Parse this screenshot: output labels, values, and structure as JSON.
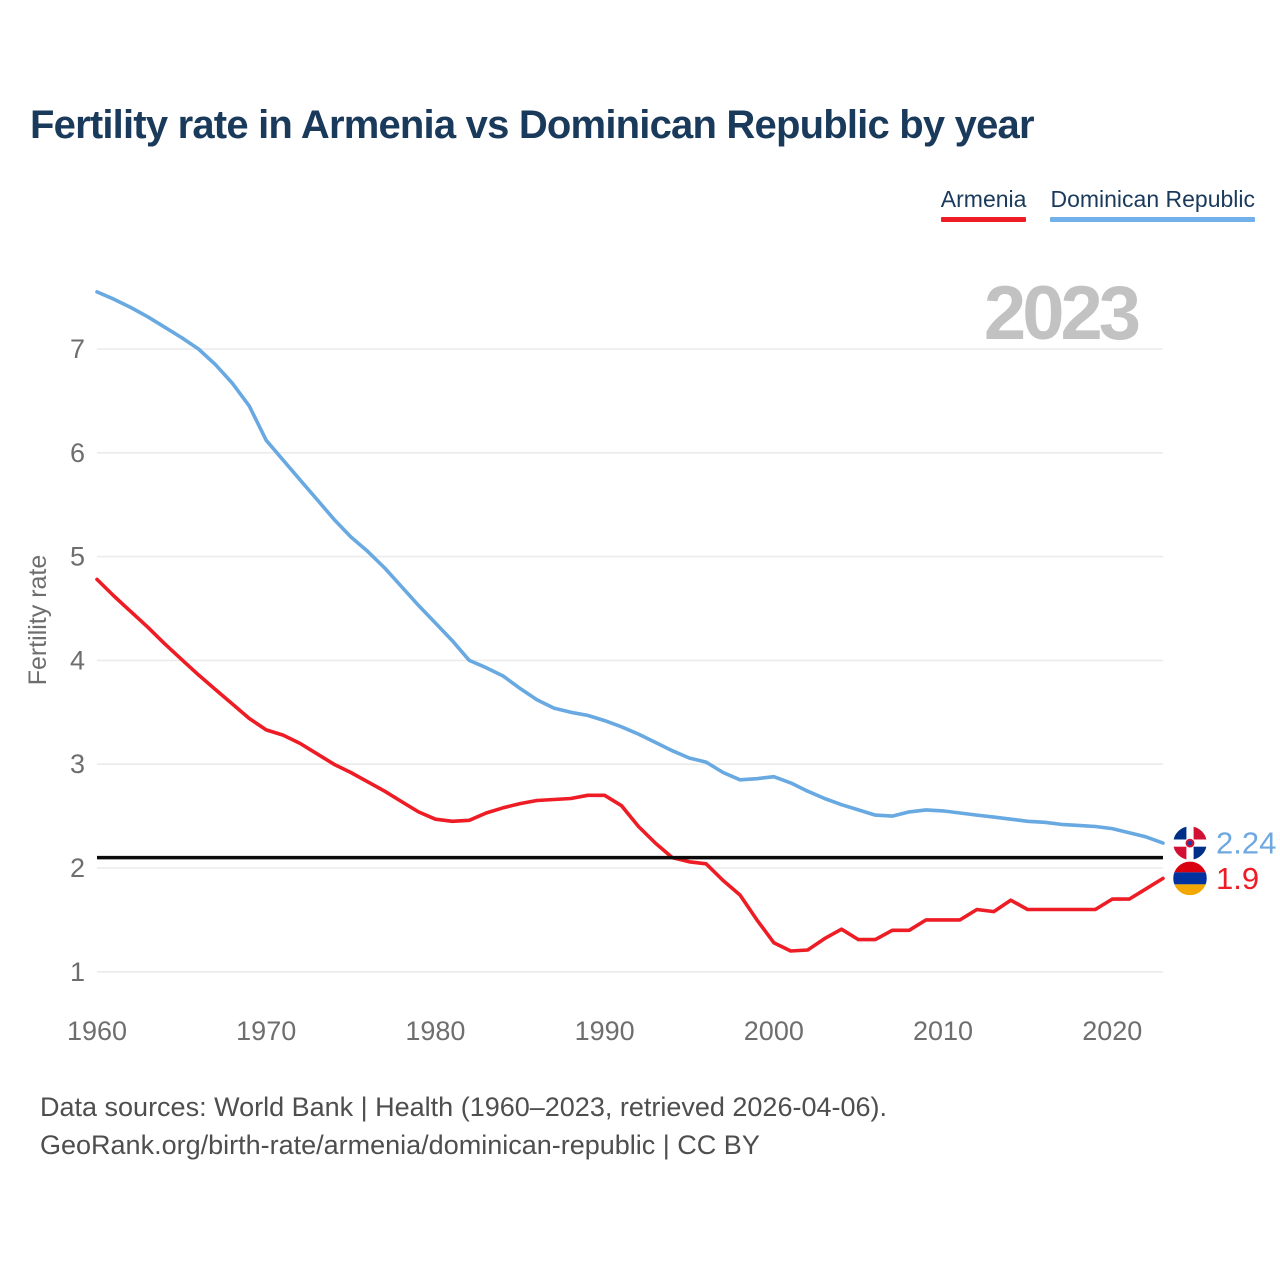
{
  "title": "Fertility rate in Armenia vs Dominican Republic by year",
  "watermark": "2023",
  "legend": [
    {
      "label": "Armenia",
      "color": "#ee1c25"
    },
    {
      "label": "Dominican Republic",
      "color": "#71b0e8"
    }
  ],
  "y_axis": {
    "label": "Fertility rate",
    "ticks": [
      1,
      2,
      3,
      4,
      5,
      6,
      7
    ]
  },
  "x_axis": {
    "ticks": [
      1960,
      1970,
      1980,
      1990,
      2000,
      2010,
      2020
    ]
  },
  "reference_line": {
    "value": 2.1,
    "color": "#0b0b0b"
  },
  "end_labels": [
    {
      "series": "Dominican Republic",
      "text": "2.24",
      "value": 2.24,
      "color": "#6fa8e0",
      "flag": "dominican-republic-flag"
    },
    {
      "series": "Armenia",
      "text": "1.9",
      "value": 1.9,
      "color": "#ee1c25",
      "flag": "armenia-flag"
    }
  ],
  "footer": {
    "line1": "Data sources: World Bank | Health (1960–2023, retrieved 2026-04-06).",
    "line2": "GeoRank.org/birth-rate/armenia/dominican-republic | CC BY"
  },
  "chart_data": {
    "type": "line",
    "title": "Fertility rate in Armenia vs Dominican Republic by year",
    "xlabel": "",
    "ylabel": "Fertility rate",
    "x_start": 1960,
    "x_end": 2023,
    "ylim": [
      1,
      7.8
    ],
    "grid": "horizontal",
    "legend_position": "top-right",
    "reference_value": 2.1,
    "series": [
      {
        "name": "Armenia",
        "color": "#ee1c25",
        "end_label": "1.9",
        "values": [
          4.78,
          4.62,
          4.47,
          4.32,
          4.16,
          4.01,
          3.86,
          3.72,
          3.58,
          3.44,
          3.33,
          3.28,
          3.2,
          3.1,
          3.0,
          2.92,
          2.83,
          2.74,
          2.64,
          2.54,
          2.47,
          2.45,
          2.46,
          2.53,
          2.58,
          2.62,
          2.65,
          2.66,
          2.67,
          2.7,
          2.7,
          2.6,
          2.4,
          2.24,
          2.1,
          2.06,
          2.04,
          1.88,
          1.74,
          1.5,
          1.28,
          1.2,
          1.21,
          1.32,
          1.41,
          1.31,
          1.31,
          1.4,
          1.4,
          1.5,
          1.5,
          1.5,
          1.6,
          1.58,
          1.69,
          1.6,
          1.6,
          1.6,
          1.6,
          1.6,
          1.7,
          1.7,
          1.8,
          1.9
        ]
      },
      {
        "name": "Dominican Republic",
        "color": "#68a9e1",
        "end_label": "2.24",
        "values": [
          7.55,
          7.48,
          7.4,
          7.31,
          7.21,
          7.11,
          7.0,
          6.85,
          6.67,
          6.45,
          6.12,
          5.93,
          5.74,
          5.55,
          5.36,
          5.19,
          5.05,
          4.89,
          4.71,
          4.53,
          4.36,
          4.19,
          4.0,
          3.93,
          3.85,
          3.73,
          3.62,
          3.54,
          3.5,
          3.47,
          3.42,
          3.36,
          3.29,
          3.21,
          3.13,
          3.06,
          3.02,
          2.92,
          2.85,
          2.86,
          2.88,
          2.82,
          2.74,
          2.67,
          2.61,
          2.56,
          2.51,
          2.5,
          2.54,
          2.56,
          2.55,
          2.53,
          2.51,
          2.49,
          2.47,
          2.45,
          2.44,
          2.42,
          2.41,
          2.4,
          2.38,
          2.34,
          2.3,
          2.24
        ]
      }
    ]
  }
}
